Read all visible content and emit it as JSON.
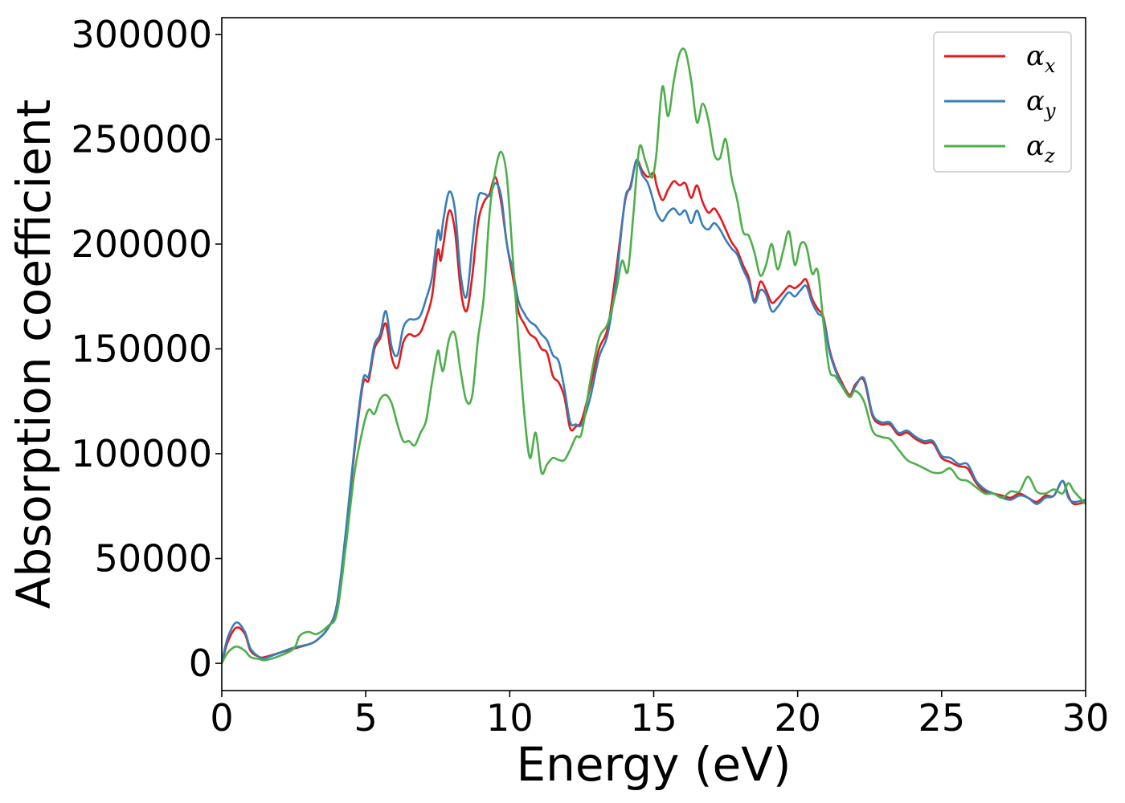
{
  "chart_data": {
    "type": "line",
    "title": "",
    "xlabel": "Energy (eV)",
    "ylabel": "Absorption coefficient",
    "xlim": [
      0,
      30
    ],
    "ylim": [
      -13000,
      308000
    ],
    "xticks": [
      "0",
      "5",
      "10",
      "15",
      "20",
      "25",
      "30"
    ],
    "yticks": [
      "0",
      "50000",
      "100000",
      "150000",
      "200000",
      "250000",
      "300000"
    ],
    "grid": false,
    "legend_position": "top-right",
    "series": [
      {
        "name": "αx",
        "symbol": "α",
        "subscript": "x",
        "color": "#e41a1c",
        "x": [
          0,
          0.2,
          0.5,
          0.8,
          1.0,
          1.3,
          1.5,
          2.0,
          2.5,
          3.0,
          3.3,
          3.7,
          4.0,
          4.3,
          4.6,
          4.9,
          5.1,
          5.3,
          5.5,
          5.7,
          5.9,
          6.1,
          6.3,
          6.5,
          6.7,
          6.9,
          7.1,
          7.3,
          7.5,
          7.6,
          7.7,
          7.9,
          8.1,
          8.3,
          8.5,
          8.7,
          8.9,
          9.1,
          9.3,
          9.5,
          9.7,
          9.9,
          10.1,
          10.3,
          10.5,
          10.7,
          10.9,
          11.1,
          11.3,
          11.5,
          11.7,
          11.9,
          12.1,
          12.3,
          12.5,
          12.8,
          13.1,
          13.4,
          13.7,
          14.0,
          14.2,
          14.4,
          14.6,
          14.8,
          15.0,
          15.1,
          15.3,
          15.5,
          15.7,
          15.9,
          16.1,
          16.3,
          16.5,
          16.7,
          16.9,
          17.1,
          17.3,
          17.5,
          17.7,
          17.9,
          18.1,
          18.3,
          18.5,
          18.7,
          18.9,
          19.1,
          19.3,
          19.5,
          19.7,
          19.9,
          20.1,
          20.3,
          20.5,
          20.7,
          20.9,
          21.1,
          21.3,
          21.5,
          21.8,
          22.0,
          22.3,
          22.6,
          22.9,
          23.2,
          23.5,
          23.8,
          24.1,
          24.4,
          24.7,
          25.0,
          25.3,
          25.6,
          25.9,
          26.2,
          26.5,
          26.8,
          27.1,
          27.4,
          27.7,
          28.0,
          28.3,
          28.6,
          28.9,
          29.2,
          29.4,
          29.6,
          30.0
        ],
        "values": [
          0,
          10000,
          17000,
          14000,
          6000,
          3000,
          3000,
          5000,
          7000,
          9000,
          11000,
          17000,
          28000,
          60000,
          100000,
          133000,
          135000,
          150000,
          155000,
          162000,
          146000,
          141000,
          153000,
          157000,
          156000,
          158000,
          165000,
          175000,
          197000,
          192000,
          200000,
          216000,
          206000,
          178000,
          168000,
          185000,
          210000,
          220000,
          224000,
          232000,
          220000,
          200000,
          185000,
          168000,
          162000,
          157000,
          155000,
          150000,
          148000,
          137000,
          134000,
          127000,
          112000,
          113000,
          116000,
          132000,
          150000,
          160000,
          188000,
          220000,
          228000,
          240000,
          235000,
          232000,
          234000,
          228000,
          221000,
          226000,
          230000,
          228000,
          229000,
          222000,
          228000,
          220000,
          215000,
          217000,
          213000,
          207000,
          201000,
          197000,
          190000,
          184000,
          173000,
          182000,
          178000,
          172000,
          174000,
          177000,
          180000,
          179000,
          181000,
          183000,
          174000,
          169000,
          165000,
          150000,
          141000,
          135000,
          128000,
          133000,
          135000,
          118000,
          114000,
          114000,
          109000,
          110000,
          107000,
          105000,
          105000,
          98000,
          96000,
          94000,
          93000,
          86000,
          82000,
          81000,
          80000,
          79000,
          81000,
          79000,
          77000,
          80000,
          80000,
          87000,
          80000,
          76000,
          77000
        ]
      },
      {
        "name": "αy",
        "symbol": "α",
        "subscript": "y",
        "color": "#377eb8",
        "x": [
          0,
          0.2,
          0.5,
          0.8,
          1.0,
          1.3,
          1.5,
          2.0,
          2.5,
          3.0,
          3.3,
          3.7,
          4.0,
          4.3,
          4.6,
          4.9,
          5.1,
          5.3,
          5.5,
          5.7,
          5.9,
          6.1,
          6.3,
          6.5,
          6.7,
          6.9,
          7.1,
          7.3,
          7.5,
          7.6,
          7.7,
          7.9,
          8.1,
          8.3,
          8.5,
          8.7,
          8.9,
          9.1,
          9.3,
          9.5,
          9.7,
          9.9,
          10.1,
          10.3,
          10.5,
          10.7,
          10.9,
          11.1,
          11.3,
          11.5,
          11.7,
          11.9,
          12.1,
          12.3,
          12.5,
          12.8,
          13.1,
          13.4,
          13.7,
          14.0,
          14.2,
          14.4,
          14.6,
          14.8,
          15.0,
          15.1,
          15.3,
          15.5,
          15.7,
          15.9,
          16.1,
          16.3,
          16.5,
          16.7,
          16.9,
          17.1,
          17.3,
          17.5,
          17.7,
          17.9,
          18.1,
          18.3,
          18.5,
          18.7,
          18.9,
          19.1,
          19.3,
          19.5,
          19.7,
          19.9,
          20.1,
          20.3,
          20.5,
          20.7,
          20.9,
          21.1,
          21.3,
          21.5,
          21.8,
          22.0,
          22.3,
          22.6,
          22.9,
          23.2,
          23.5,
          23.8,
          24.1,
          24.4,
          24.7,
          25.0,
          25.3,
          25.6,
          25.9,
          26.2,
          26.5,
          26.8,
          27.1,
          27.4,
          27.7,
          28.0,
          28.3,
          28.6,
          28.9,
          29.2,
          29.4,
          29.6,
          30.0
        ],
        "values": [
          0,
          12000,
          19500,
          15000,
          7000,
          3000,
          2500,
          5000,
          7500,
          9000,
          11000,
          17000,
          28000,
          62000,
          102000,
          135000,
          137000,
          152000,
          157000,
          168000,
          151000,
          147000,
          160000,
          164000,
          164000,
          166000,
          174000,
          184000,
          206000,
          202000,
          212000,
          225000,
          216000,
          185000,
          175000,
          200000,
          222000,
          224000,
          223000,
          229000,
          223000,
          200000,
          188000,
          173000,
          167000,
          163000,
          161000,
          157000,
          154000,
          147000,
          144000,
          131000,
          115000,
          114000,
          114000,
          127000,
          146000,
          157000,
          183000,
          221000,
          227000,
          240000,
          233000,
          229000,
          220000,
          215000,
          211000,
          215000,
          217000,
          214000,
          216000,
          210000,
          216000,
          209000,
          207000,
          210000,
          207000,
          202000,
          198000,
          195000,
          188000,
          182000,
          172000,
          178000,
          176000,
          168000,
          170000,
          174000,
          177000,
          175000,
          178000,
          180000,
          172000,
          167000,
          164000,
          149000,
          140000,
          134000,
          127000,
          132000,
          136000,
          119000,
          115000,
          115000,
          110000,
          111000,
          108000,
          106000,
          106000,
          99000,
          98000,
          95000,
          95000,
          87000,
          83000,
          81000,
          79000,
          78000,
          80000,
          79000,
          76000,
          79000,
          80000,
          87000,
          79000,
          77000,
          78000
        ]
      },
      {
        "name": "αz",
        "symbol": "α",
        "subscript": "z",
        "color": "#4daf4a",
        "x": [
          0,
          0.2,
          0.5,
          0.8,
          1.0,
          1.3,
          1.5,
          2.0,
          2.5,
          2.7,
          3.0,
          3.3,
          3.7,
          4.0,
          4.3,
          4.6,
          4.9,
          5.1,
          5.3,
          5.5,
          5.7,
          5.9,
          6.1,
          6.3,
          6.5,
          6.7,
          6.9,
          7.1,
          7.3,
          7.5,
          7.6,
          7.7,
          7.9,
          8.1,
          8.3,
          8.5,
          8.7,
          8.9,
          9.1,
          9.3,
          9.5,
          9.7,
          9.9,
          10.1,
          10.3,
          10.5,
          10.7,
          10.9,
          11.1,
          11.3,
          11.5,
          11.7,
          11.9,
          12.1,
          12.3,
          12.5,
          12.8,
          13.1,
          13.4,
          13.7,
          13.9,
          14.1,
          14.3,
          14.5,
          14.7,
          14.9,
          15.0,
          15.1,
          15.3,
          15.5,
          15.7,
          15.9,
          16.1,
          16.3,
          16.5,
          16.7,
          16.9,
          17.1,
          17.3,
          17.5,
          17.7,
          17.9,
          18.1,
          18.3,
          18.5,
          18.7,
          18.9,
          19.1,
          19.3,
          19.5,
          19.7,
          19.9,
          20.1,
          20.3,
          20.5,
          20.7,
          20.9,
          21.1,
          21.3,
          21.5,
          21.8,
          22.0,
          22.3,
          22.6,
          22.9,
          23.2,
          23.5,
          23.8,
          24.1,
          24.4,
          24.7,
          25.0,
          25.3,
          25.6,
          25.9,
          26.2,
          26.5,
          26.8,
          27.1,
          27.4,
          27.7,
          28.0,
          28.3,
          28.6,
          28.9,
          29.2,
          29.4,
          29.6,
          30.0
        ],
        "values": [
          0,
          5000,
          8000,
          6000,
          3000,
          2000,
          1500,
          3500,
          7000,
          13000,
          15000,
          14000,
          18000,
          24000,
          55000,
          90000,
          112000,
          121000,
          119000,
          126000,
          128000,
          124000,
          114000,
          106000,
          106000,
          104000,
          110000,
          116000,
          134000,
          149000,
          143000,
          140000,
          155000,
          157000,
          139000,
          125000,
          128000,
          155000,
          175000,
          215000,
          235000,
          244000,
          232000,
          195000,
          155000,
          120000,
          98000,
          110000,
          91000,
          95000,
          98000,
          97000,
          97000,
          102000,
          108000,
          110000,
          135000,
          155000,
          162000,
          178000,
          192000,
          187000,
          215000,
          246000,
          240000,
          232000,
          234000,
          244000,
          275000,
          261000,
          278000,
          291000,
          292000,
          278000,
          258000,
          267000,
          259000,
          243000,
          241000,
          250000,
          232000,
          221000,
          206000,
          204000,
          196000,
          185000,
          190000,
          200000,
          188000,
          197000,
          206000,
          190000,
          200000,
          199000,
          186000,
          187000,
          162000,
          140000,
          137000,
          133000,
          127000,
          130000,
          125000,
          111000,
          108000,
          107000,
          102000,
          97000,
          95000,
          93000,
          91000,
          91000,
          93000,
          88000,
          87000,
          84000,
          81000,
          81000,
          79000,
          82000,
          82000,
          89000,
          82000,
          81000,
          83000,
          81000,
          86000,
          82000,
          76000
        ]
      }
    ]
  }
}
